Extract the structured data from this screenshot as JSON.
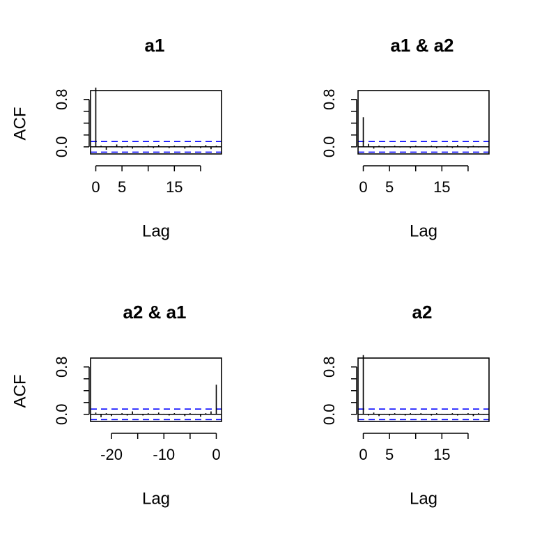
{
  "chart_data": [
    {
      "type": "bar",
      "title": "a1",
      "xlabel": "Lag",
      "ylabel": "ACF",
      "xlim": [
        -1,
        24
      ],
      "ylim": [
        -0.12,
        0.95
      ],
      "x_ticks": [
        "0",
        "5",
        "15"
      ],
      "x_tick_values": [
        0,
        5,
        15
      ],
      "x_minor_ticks": [
        10,
        20
      ],
      "y_ticks": [
        "0.0",
        "0.8"
      ],
      "y_tick_values": [
        0.0,
        0.8
      ],
      "y_minor_ticks": [
        0.2,
        0.4,
        0.6
      ],
      "confidence_bound": 0.089,
      "lags": [
        0,
        1,
        2,
        3,
        4,
        5,
        6,
        7,
        8,
        9,
        10,
        11,
        12,
        13,
        14,
        15,
        16,
        17,
        18,
        19,
        20,
        21,
        22,
        23
      ],
      "values": [
        1.0,
        0.02,
        -0.05,
        0.01,
        0.04,
        -0.02,
        0.02,
        -0.03,
        0.01,
        -0.01,
        0.02,
        -0.02,
        0.03,
        0.01,
        -0.02,
        0.02,
        0.01,
        -0.03,
        0.02,
        0.01,
        -0.02,
        0.03,
        -0.04,
        0.02
      ]
    },
    {
      "type": "bar",
      "title": "a1 & a2",
      "xlabel": "Lag",
      "ylabel": "",
      "xlim": [
        -1,
        24
      ],
      "ylim": [
        -0.12,
        0.95
      ],
      "x_ticks": [
        "0",
        "5",
        "15"
      ],
      "x_tick_values": [
        0,
        5,
        15
      ],
      "x_minor_ticks": [
        10,
        20
      ],
      "y_ticks": [
        "0.0",
        "0.8"
      ],
      "y_tick_values": [
        0.0,
        0.8
      ],
      "y_minor_ticks": [
        0.2,
        0.4,
        0.6
      ],
      "confidence_bound": 0.089,
      "lags": [
        0,
        1,
        2,
        3,
        4,
        5,
        6,
        7,
        8,
        9,
        10,
        11,
        12,
        13,
        14,
        15,
        16,
        17,
        18,
        19,
        20,
        21,
        22,
        23
      ],
      "values": [
        0.5,
        0.05,
        -0.03,
        0.02,
        -0.02,
        0.01,
        0.02,
        -0.01,
        0.01,
        -0.02,
        0.02,
        0.01,
        -0.01,
        0.02,
        -0.02,
        0.01,
        0.02,
        -0.02,
        0.03,
        0.01,
        -0.02,
        0.02,
        -0.01,
        0.01
      ]
    },
    {
      "type": "bar",
      "title": "a2 & a1",
      "xlabel": "Lag",
      "ylabel": "ACF",
      "xlim": [
        -24,
        1
      ],
      "ylim": [
        -0.12,
        0.95
      ],
      "x_ticks": [
        "-20",
        "-10",
        "0"
      ],
      "x_tick_values": [
        -20,
        -10,
        0
      ],
      "x_minor_ticks": [
        -15,
        -5
      ],
      "y_ticks": [
        "0.0",
        "0.8"
      ],
      "y_tick_values": [
        0.0,
        0.8
      ],
      "y_minor_ticks": [
        0.2,
        0.4,
        0.6
      ],
      "confidence_bound": 0.089,
      "lags": [
        -23,
        -22,
        -21,
        -20,
        -19,
        -18,
        -17,
        -16,
        -15,
        -14,
        -13,
        -12,
        -11,
        -10,
        -9,
        -8,
        -7,
        -6,
        -5,
        -4,
        -3,
        -2,
        -1,
        0
      ],
      "values": [
        0.03,
        -0.05,
        0.02,
        -0.03,
        0.01,
        0.02,
        -0.02,
        0.05,
        0.01,
        -0.02,
        0.02,
        -0.01,
        0.03,
        0.01,
        -0.02,
        0.02,
        0.01,
        -0.03,
        0.02,
        0.01,
        -0.04,
        0.02,
        0.05,
        0.5
      ]
    },
    {
      "type": "bar",
      "title": "a2",
      "xlabel": "Lag",
      "ylabel": "",
      "xlim": [
        -1,
        24
      ],
      "ylim": [
        -0.12,
        0.95
      ],
      "x_ticks": [
        "0",
        "5",
        "15"
      ],
      "x_tick_values": [
        0,
        5,
        15
      ],
      "x_minor_ticks": [
        10,
        20
      ],
      "y_ticks": [
        "0.0",
        "0.8"
      ],
      "y_tick_values": [
        0.0,
        0.8
      ],
      "y_minor_ticks": [
        0.2,
        0.4,
        0.6
      ],
      "confidence_bound": 0.089,
      "lags": [
        0,
        1,
        2,
        3,
        4,
        5,
        6,
        7,
        8,
        9,
        10,
        11,
        12,
        13,
        14,
        15,
        16,
        17,
        18,
        19,
        20,
        21,
        22,
        23
      ],
      "values": [
        1.0,
        -0.02,
        0.03,
        -0.03,
        0.01,
        -0.02,
        0.02,
        0.01,
        -0.02,
        0.02,
        -0.01,
        0.02,
        0.01,
        -0.02,
        0.02,
        0.01,
        -0.01,
        0.02,
        -0.02,
        0.01,
        0.02,
        -0.03,
        0.02,
        -0.01
      ]
    }
  ],
  "colors": {
    "spike": "#000000",
    "confidence_line": "#0000ff",
    "zero_line": "#000000",
    "frame": "#000000"
  }
}
